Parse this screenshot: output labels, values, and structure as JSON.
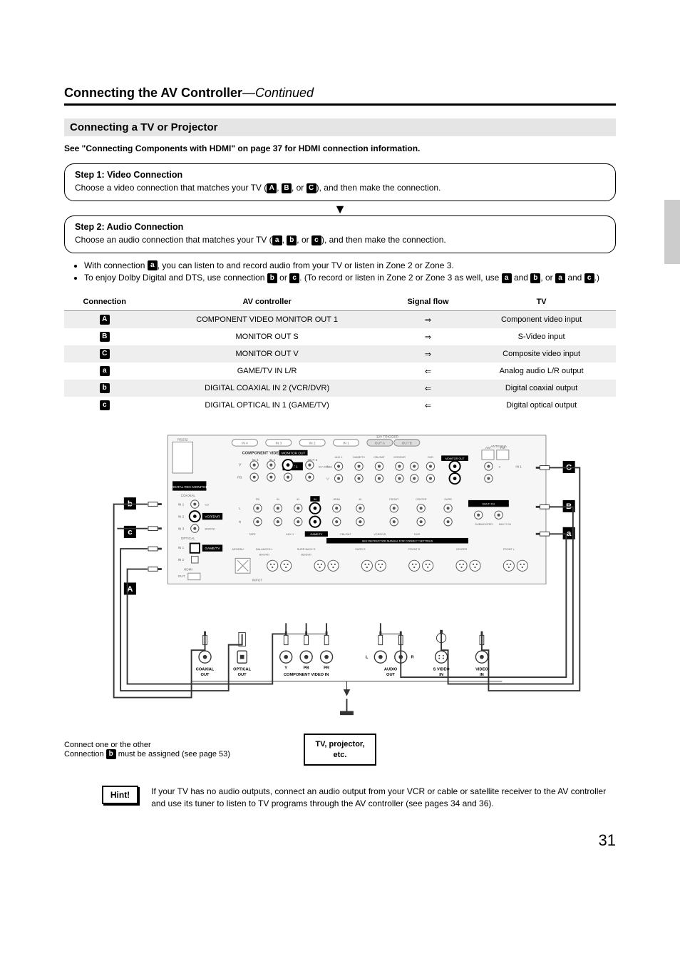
{
  "header": {
    "title": "Connecting the AV Controller",
    "continued": "—Continued"
  },
  "subsection": "Connecting a TV or Projector",
  "hdmi_note": "See \"Connecting Components with HDMI\" on page 37 for HDMI connection information.",
  "step1": {
    "title": "Step 1: Video Connection",
    "pre": "Choose a video connection that matches your TV (",
    "mid1": ", ",
    "mid2": ", or ",
    "post": "), and then make the connection.",
    "chips": [
      "A",
      "B",
      "C"
    ]
  },
  "step2": {
    "title": "Step 2: Audio Connection",
    "pre": "Choose an audio connection that matches your TV (",
    "mid1": ", ",
    "mid2": ", or ",
    "post": "), and then make the connection.",
    "chips": [
      "a",
      "b",
      "c"
    ]
  },
  "bullets": {
    "b1_pre": "With connection ",
    "b1_post": ", you can listen to and record audio from your TV or listen in Zone 2 or Zone 3.",
    "b1_chip": "a",
    "b2_pre": "To enjoy Dolby Digital and DTS, use connection ",
    "b2_mid1": " or ",
    "b2_mid2": ". (To record or listen in Zone 2 or Zone 3 as well, use ",
    "b2_mid3": " and ",
    "b2_mid4": ", or ",
    "b2_mid5": " and ",
    "b2_post": ".)",
    "b2_chips": [
      "b",
      "c",
      "a",
      "b",
      "a",
      "c"
    ]
  },
  "table": {
    "headers": [
      "Connection",
      "AV controller",
      "Signal flow",
      "TV"
    ],
    "rows": [
      {
        "chip": "A",
        "av": "COMPONENT VIDEO MONITOR OUT 1",
        "flow": "⇒",
        "tv": "Component video input",
        "shade": true
      },
      {
        "chip": "B",
        "av": "MONITOR OUT S",
        "flow": "⇒",
        "tv": "S-Video input",
        "shade": false
      },
      {
        "chip": "C",
        "av": "MONITOR OUT V",
        "flow": "⇒",
        "tv": "Composite video input",
        "shade": true
      },
      {
        "chip": "a",
        "av": "GAME/TV IN L/R",
        "flow": "⇐",
        "tv": "Analog audio L/R output",
        "shade": false
      },
      {
        "chip": "b",
        "av": "DIGITAL COAXIAL IN 2 (VCR/DVR)",
        "flow": "⇐",
        "tv": "Digital coaxial output",
        "shade": true
      },
      {
        "chip": "c",
        "av": "DIGITAL OPTICAL IN 1 (GAME/TV)",
        "flow": "⇐",
        "tv": "Digital optical output",
        "shade": false
      }
    ]
  },
  "diagram": {
    "panel_labels": {
      "rs232": "RS232",
      "component_video": "COMPONENT VIDEO",
      "monitor_out": "MONITOR OUT",
      "digital": "DIGITAL",
      "coaxial": "COAXIAL",
      "optical": "OPTICAL",
      "hdmi": "HDMI",
      "ir": "IR",
      "antenna": "ANTENNA",
      "am": "AM",
      "fm": "FM",
      "input": "INPUT",
      "balanced": "BALANCED",
      "surr_back": "SURR BACK",
      "center": "CENTER",
      "front": "FRONT",
      "multich": "MULTI CH",
      "in1": "IN 1",
      "in2": "IN 2",
      "in3": "IN 3",
      "in4": "IN 4",
      "in5": "IN 5",
      "out1": "OUT 1",
      "out": "OUT",
      "y": "Y",
      "pb": "PB",
      "pr": "PR",
      "aux1": "AUX 1",
      "gametv": "GAME/TV",
      "cbl_sat": "CBL/SAT",
      "vcr_dvr": "VCR/DVR",
      "dvd": "DVD",
      "tape": "TAPE",
      "tv_in": "TV",
      "cd": "CD",
      "l": "L",
      "r": "R",
      "s": "S",
      "v": "V",
      "subwoofer": "SUBWOOFER"
    },
    "callouts": {
      "A": "A",
      "B": "B",
      "C": "C",
      "a": "a",
      "b": "b",
      "c": "c"
    },
    "bottom_ports": {
      "coaxial_out": "COAXIAL\nOUT",
      "optical_out": "OPTICAL\nOUT",
      "comp_y": "Y",
      "comp_pb": "PB",
      "comp_pr": "PR",
      "comp_label": "COMPONENT VIDEO IN",
      "audio_l": "L",
      "audio_r": "R",
      "audio_out": "AUDIO\nOUT",
      "svideo_in": "S VIDEO\nIN",
      "video_in": "VIDEO\nIN"
    },
    "device_label": "TV, projector,\netc."
  },
  "caption": {
    "line1": "Connect one or the other",
    "line2_pre": "Connection ",
    "line2_chip": "b",
    "line2_post": " must be assigned (see page 53)"
  },
  "hint": {
    "label": "Hint!",
    "text": "If your TV has no audio outputs, connect an audio output from your VCR or cable or satellite receiver to the AV controller and use its tuner to listen to TV programs through the AV controller (see pages 34 and 36)."
  },
  "page_number": "31",
  "colors": {
    "chip_bg": "#000000",
    "chip_fg": "#ffffff",
    "shade_row": "#eeeeee",
    "subsection_bg": "#e5e5e5",
    "panel_bg": "#f6f6f6",
    "panel_stroke": "#888888"
  }
}
